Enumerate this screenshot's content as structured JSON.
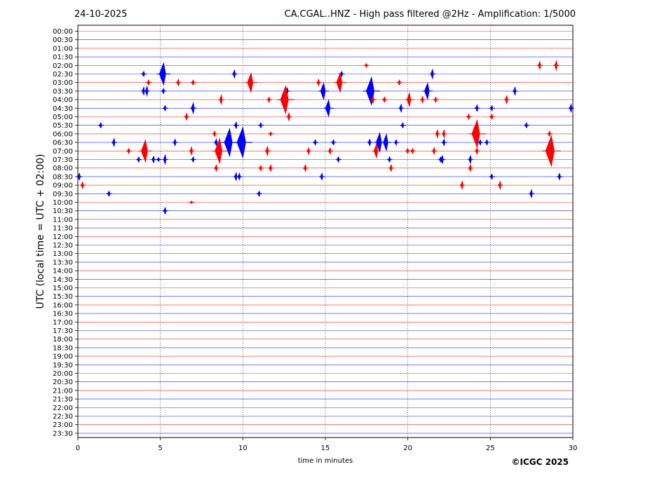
{
  "header": {
    "date": "24-10-2025",
    "title": "CA.CGAL..HNZ - High pass filtered @2Hz - Amplification: 1/5000"
  },
  "footer": {
    "copyright": "©ICGC 2025"
  },
  "chart_data": {
    "type": "helicorder",
    "xlabel": "time in minutes",
    "ylabel": "UTC (local time = UTC + 02:00)",
    "xlim": [
      0,
      30
    ],
    "x_ticks": [
      0,
      5,
      10,
      15,
      20,
      25,
      30
    ],
    "vertical_grid_minutes": [
      5,
      10,
      15,
      20,
      25
    ],
    "rows": [
      "00:00",
      "00:30",
      "01:00",
      "01:30",
      "02:00",
      "02:30",
      "03:00",
      "03:30",
      "04:00",
      "04:30",
      "05:00",
      "05:30",
      "06:00",
      "06:30",
      "07:00",
      "07:30",
      "08:00",
      "08:30",
      "09:00",
      "09:30",
      "10:00",
      "10:30",
      "11:00",
      "11:30",
      "12:00",
      "12:30",
      "13:00",
      "13:30",
      "14:00",
      "14:30",
      "15:00",
      "15:30",
      "16:00",
      "16:30",
      "17:00",
      "17:30",
      "18:00",
      "18:30",
      "19:00",
      "19:30",
      "20:00",
      "20:30",
      "21:00",
      "21:30",
      "22:00",
      "22:30",
      "23:00",
      "23:30"
    ],
    "trace_colors": [
      "#ff0000",
      "#0000ff"
    ],
    "events": [
      {
        "row": 4,
        "minute": 17.5,
        "amp": 3
      },
      {
        "row": 4,
        "minute": 28.0,
        "amp": 6
      },
      {
        "row": 4,
        "minute": 29.0,
        "amp": 7
      },
      {
        "row": 5,
        "minute": 4.0,
        "amp": 4
      },
      {
        "row": 5,
        "minute": 5.2,
        "amp": 16
      },
      {
        "row": 5,
        "minute": 9.5,
        "amp": 6
      },
      {
        "row": 5,
        "minute": 16.0,
        "amp": 4
      },
      {
        "row": 5,
        "minute": 21.5,
        "amp": 7
      },
      {
        "row": 6,
        "minute": 4.3,
        "amp": 4
      },
      {
        "row": 6,
        "minute": 10.5,
        "amp": 14
      },
      {
        "row": 6,
        "minute": 6.1,
        "amp": 5
      },
      {
        "row": 6,
        "minute": 7.0,
        "amp": 4
      },
      {
        "row": 6,
        "minute": 14.6,
        "amp": 5
      },
      {
        "row": 6,
        "minute": 15.9,
        "amp": 14
      },
      {
        "row": 6,
        "minute": 19.5,
        "amp": 4
      },
      {
        "row": 7,
        "minute": 4.2,
        "amp": 7
      },
      {
        "row": 7,
        "minute": 12.7,
        "amp": 5
      },
      {
        "row": 7,
        "minute": 21.2,
        "amp": 12
      },
      {
        "row": 7,
        "minute": 26.5,
        "amp": 6
      },
      {
        "row": 7,
        "minute": 4.0,
        "amp": 6
      },
      {
        "row": 7,
        "minute": 5.2,
        "amp": 4
      },
      {
        "row": 7,
        "minute": 14.9,
        "amp": 12
      },
      {
        "row": 7,
        "minute": 17.8,
        "amp": 20
      },
      {
        "row": 8,
        "minute": 8.7,
        "amp": 7
      },
      {
        "row": 8,
        "minute": 12.6,
        "amp": 20
      },
      {
        "row": 8,
        "minute": 18.6,
        "amp": 4
      },
      {
        "row": 8,
        "minute": 21.7,
        "amp": 4
      },
      {
        "row": 8,
        "minute": 26.0,
        "amp": 6
      },
      {
        "row": 8,
        "minute": 11.6,
        "amp": 4
      },
      {
        "row": 8,
        "minute": 17.9,
        "amp": 5
      },
      {
        "row": 8,
        "minute": 20.1,
        "amp": 10
      },
      {
        "row": 8,
        "minute": 20.9,
        "amp": 5
      },
      {
        "row": 9,
        "minute": 7.0,
        "amp": 8
      },
      {
        "row": 9,
        "minute": 15.2,
        "amp": 12
      },
      {
        "row": 9,
        "minute": 19.6,
        "amp": 6
      },
      {
        "row": 9,
        "minute": 5.3,
        "amp": 4
      },
      {
        "row": 9,
        "minute": 24.2,
        "amp": 5
      },
      {
        "row": 9,
        "minute": 25.1,
        "amp": 4
      },
      {
        "row": 9,
        "minute": 29.9,
        "amp": 6
      },
      {
        "row": 10,
        "minute": 6.6,
        "amp": 5
      },
      {
        "row": 10,
        "minute": 23.7,
        "amp": 4
      },
      {
        "row": 10,
        "minute": 12.8,
        "amp": 6
      },
      {
        "row": 10,
        "minute": 25.1,
        "amp": 4
      },
      {
        "row": 11,
        "minute": 9.6,
        "amp": 5
      },
      {
        "row": 11,
        "minute": 11.1,
        "amp": 4
      },
      {
        "row": 11,
        "minute": 19.7,
        "amp": 4
      },
      {
        "row": 11,
        "minute": 1.4,
        "amp": 4
      },
      {
        "row": 11,
        "minute": 27.2,
        "amp": 4
      },
      {
        "row": 12,
        "minute": 8.3,
        "amp": 4
      },
      {
        "row": 12,
        "minute": 28.6,
        "amp": 4
      },
      {
        "row": 12,
        "minute": 11.7,
        "amp": 3
      },
      {
        "row": 12,
        "minute": 21.8,
        "amp": 6
      },
      {
        "row": 12,
        "minute": 22.2,
        "amp": 6
      },
      {
        "row": 12,
        "minute": 24.2,
        "amp": 20
      },
      {
        "row": 13,
        "minute": 2.2,
        "amp": 6
      },
      {
        "row": 13,
        "minute": 9.2,
        "amp": 20
      },
      {
        "row": 13,
        "minute": 22.2,
        "amp": 5
      },
      {
        "row": 13,
        "minute": 24.4,
        "amp": 4
      },
      {
        "row": 13,
        "minute": 24.8,
        "amp": 4
      },
      {
        "row": 13,
        "minute": 5.9,
        "amp": 5
      },
      {
        "row": 13,
        "minute": 8.4,
        "amp": 5
      },
      {
        "row": 13,
        "minute": 10.0,
        "amp": 22
      },
      {
        "row": 13,
        "minute": 14.4,
        "amp": 4
      },
      {
        "row": 13,
        "minute": 15.5,
        "amp": 4
      },
      {
        "row": 13,
        "minute": 17.7,
        "amp": 5
      },
      {
        "row": 13,
        "minute": 18.3,
        "amp": 14
      },
      {
        "row": 13,
        "minute": 18.7,
        "amp": 12
      },
      {
        "row": 13,
        "minute": 19.3,
        "amp": 4
      },
      {
        "row": 14,
        "minute": 6.9,
        "amp": 6
      },
      {
        "row": 14,
        "minute": 11.5,
        "amp": 7
      },
      {
        "row": 14,
        "minute": 18.1,
        "amp": 10
      },
      {
        "row": 14,
        "minute": 21.6,
        "amp": 5
      },
      {
        "row": 14,
        "minute": 24.2,
        "amp": 5
      },
      {
        "row": 14,
        "minute": 3.1,
        "amp": 4
      },
      {
        "row": 14,
        "minute": 4.1,
        "amp": 16
      },
      {
        "row": 14,
        "minute": 8.6,
        "amp": 18
      },
      {
        "row": 14,
        "minute": 14.0,
        "amp": 5
      },
      {
        "row": 14,
        "minute": 15.3,
        "amp": 5
      },
      {
        "row": 14,
        "minute": 20.0,
        "amp": 4
      },
      {
        "row": 14,
        "minute": 20.3,
        "amp": 4
      },
      {
        "row": 14,
        "minute": 28.7,
        "amp": 22
      },
      {
        "row": 15,
        "minute": 4.9,
        "amp": 3
      },
      {
        "row": 15,
        "minute": 22.1,
        "amp": 6
      },
      {
        "row": 15,
        "minute": 23.8,
        "amp": 6
      },
      {
        "row": 15,
        "minute": 3.7,
        "amp": 4
      },
      {
        "row": 15,
        "minute": 4.6,
        "amp": 5
      },
      {
        "row": 15,
        "minute": 5.3,
        "amp": 7
      },
      {
        "row": 15,
        "minute": 7.0,
        "amp": 4
      },
      {
        "row": 15,
        "minute": 15.8,
        "amp": 4
      },
      {
        "row": 15,
        "minute": 18.9,
        "amp": 4
      },
      {
        "row": 15,
        "minute": 22.0,
        "amp": 4
      },
      {
        "row": 16,
        "minute": 11.1,
        "amp": 4
      },
      {
        "row": 16,
        "minute": 11.7,
        "amp": 5
      },
      {
        "row": 16,
        "minute": 23.8,
        "amp": 5
      },
      {
        "row": 16,
        "minute": 8.4,
        "amp": 5
      },
      {
        "row": 16,
        "minute": 13.8,
        "amp": 5
      },
      {
        "row": 16,
        "minute": 19.0,
        "amp": 5
      },
      {
        "row": 17,
        "minute": 0.1,
        "amp": 5
      },
      {
        "row": 17,
        "minute": 9.6,
        "amp": 6
      },
      {
        "row": 17,
        "minute": 14.8,
        "amp": 5
      },
      {
        "row": 17,
        "minute": 25.1,
        "amp": 4
      },
      {
        "row": 17,
        "minute": 9.8,
        "amp": 5
      },
      {
        "row": 17,
        "minute": 29.2,
        "amp": 5
      },
      {
        "row": 18,
        "minute": 0.3,
        "amp": 5
      },
      {
        "row": 18,
        "minute": 23.3,
        "amp": 6
      },
      {
        "row": 18,
        "minute": 25.6,
        "amp": 6
      },
      {
        "row": 19,
        "minute": 11.0,
        "amp": 4
      },
      {
        "row": 19,
        "minute": 27.5,
        "amp": 6
      },
      {
        "row": 19,
        "minute": 1.9,
        "amp": 4
      },
      {
        "row": 20,
        "minute": 6.9,
        "amp": 2
      },
      {
        "row": 21,
        "minute": 5.3,
        "amp": 5
      }
    ]
  }
}
